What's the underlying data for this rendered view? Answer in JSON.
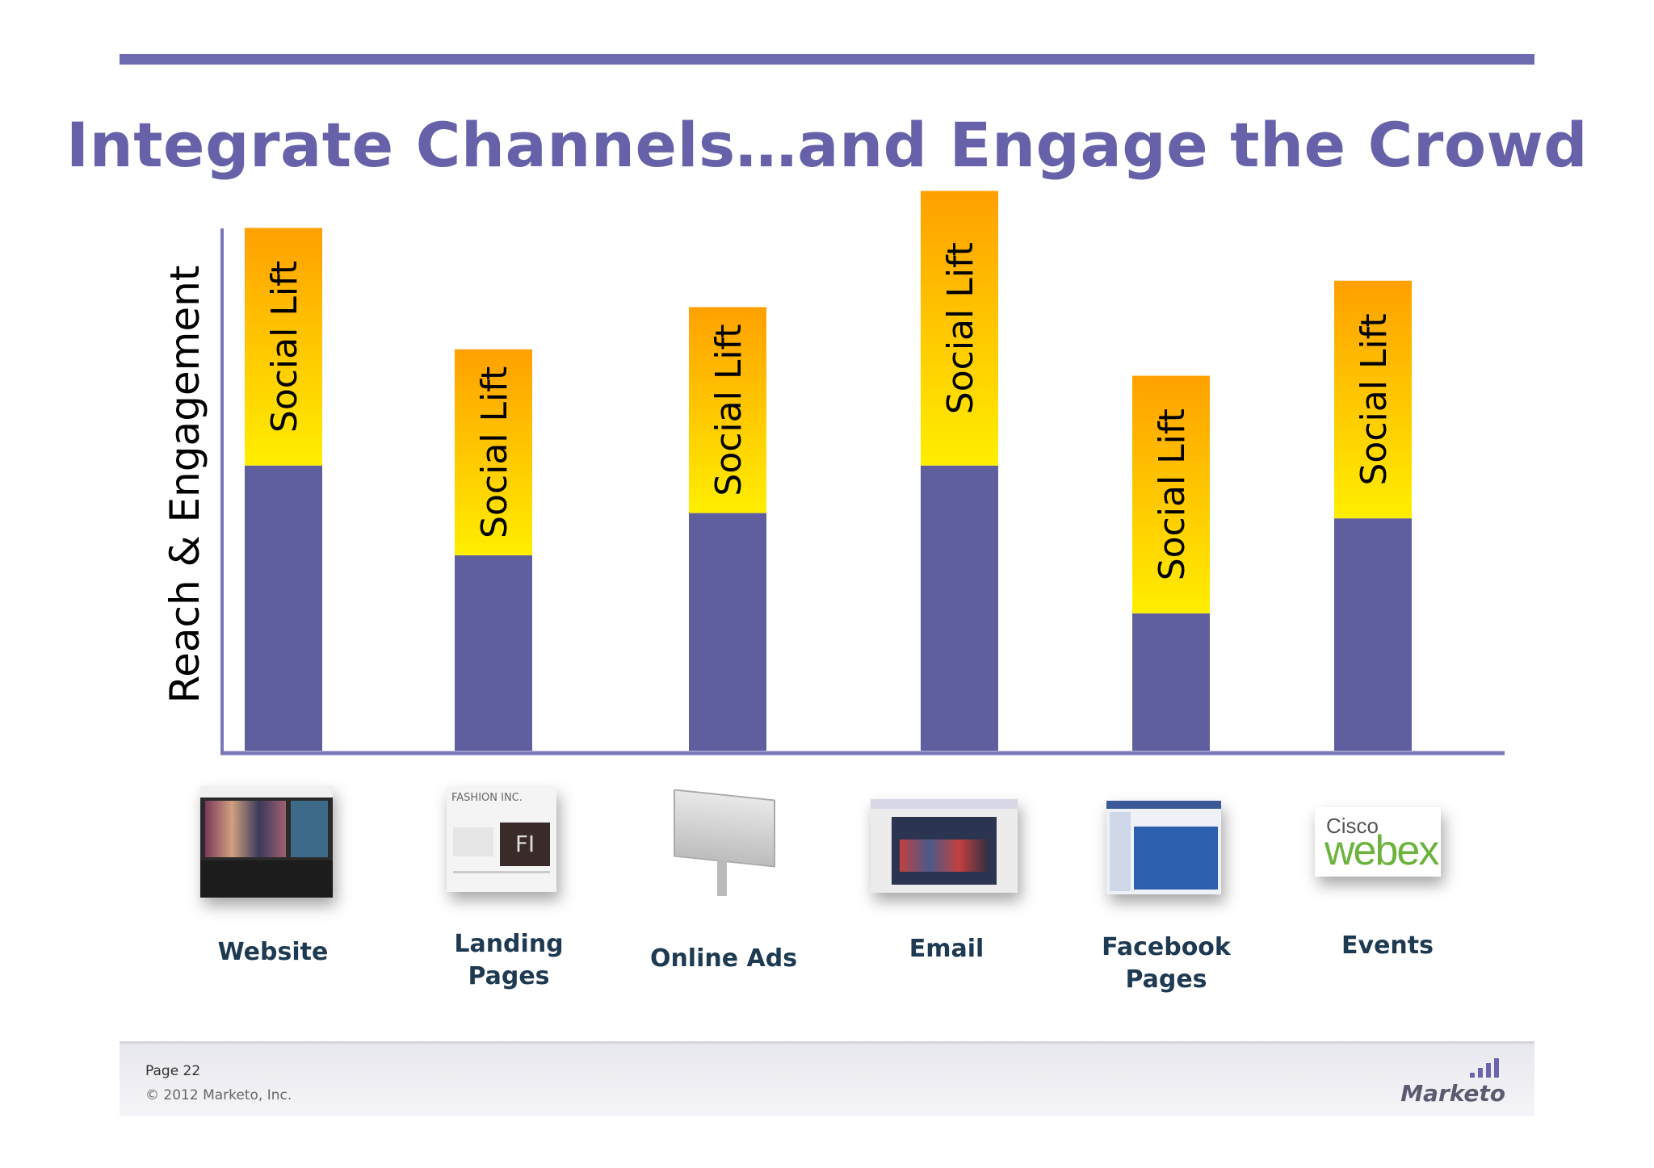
{
  "slide": {
    "title": "Integrate Channels…and Engage the Crowd"
  },
  "chart_data": {
    "type": "bar",
    "stacked": true,
    "title": "Integrate Channels…and Engage the Crowd",
    "ylabel": "Reach & Engagement",
    "xlabel": "",
    "categories": [
      "Website",
      "Landing Pages",
      "Online Ads",
      "Email",
      "Facebook Pages",
      "Events"
    ],
    "series": [
      {
        "name": "",
        "values": [
          54,
          37,
          45,
          54,
          26,
          44
        ],
        "color": "#5f5fa0"
      },
      {
        "name": "Social Lift",
        "values": [
          45,
          39,
          39,
          52,
          45,
          45
        ],
        "color_top": "#ffa000",
        "color_bottom": "#ffee00"
      }
    ],
    "segment_label": "Social Lift",
    "ylim": [
      0,
      107
    ],
    "grid": false,
    "legend": "none",
    "axis_color": "#7a76b8"
  },
  "channels": [
    {
      "label_lines": [
        "Website"
      ],
      "icon": "website-screenshot"
    },
    {
      "label_lines": [
        "Landing",
        "Pages"
      ],
      "icon": "landing-page-screenshot"
    },
    {
      "label_lines": [
        "Online Ads"
      ],
      "icon": "billboard-icon"
    },
    {
      "label_lines": [
        "Email"
      ],
      "icon": "email-screenshot"
    },
    {
      "label_lines": [
        "Facebook",
        "Pages"
      ],
      "icon": "facebook-page-screenshot"
    },
    {
      "label_lines": [
        "Events"
      ],
      "icon": "cisco-webex-logo"
    }
  ],
  "webex_logo": {
    "line1": "Cisco",
    "line2": "webex"
  },
  "footer": {
    "page": "Page 22",
    "copyright": "© 2012 Marketo, Inc.",
    "logo": "Marketo"
  }
}
